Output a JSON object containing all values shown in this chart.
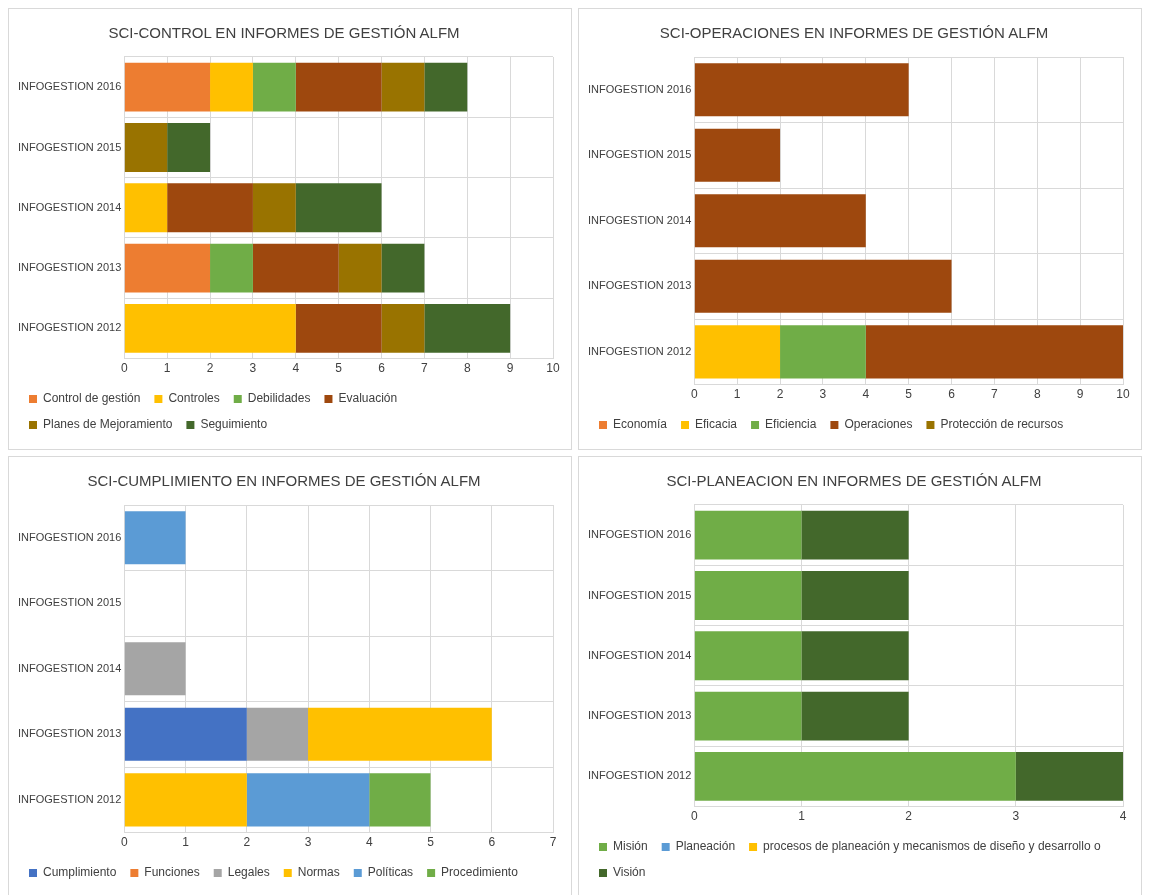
{
  "chart_data": [
    {
      "type": "bar",
      "orientation": "horizontal",
      "stacked": true,
      "title": "SCI-CONTROL EN INFORMES DE GESTIÓN ALFM",
      "categories": [
        "INFOGESTION 2016",
        "INFOGESTION 2015",
        "INFOGESTION 2014",
        "INFOGESTION 2013",
        "INFOGESTION 2012"
      ],
      "xlim": [
        0,
        10
      ],
      "xticks": [
        0,
        1,
        2,
        3,
        4,
        5,
        6,
        7,
        8,
        9,
        10
      ],
      "grid": true,
      "legend": "bottom",
      "series": [
        {
          "name": "Control de gestión",
          "color": "#ed7d31",
          "values": [
            2,
            null,
            null,
            2,
            null
          ]
        },
        {
          "name": "Controles",
          "color": "#ffc000",
          "values": [
            1,
            null,
            1,
            null,
            4
          ]
        },
        {
          "name": "Debilidades",
          "color": "#70ad47",
          "values": [
            1,
            null,
            null,
            1,
            null
          ]
        },
        {
          "name": "Evaluación",
          "color": "#9e480e",
          "values": [
            2,
            null,
            2,
            2,
            2
          ]
        },
        {
          "name": "Planes de Mejoramiento",
          "color": "#997300",
          "values": [
            1,
            1,
            1,
            1,
            1
          ]
        },
        {
          "name": "Seguimiento",
          "color": "#43682b",
          "values": [
            1,
            1,
            2,
            1,
            2
          ]
        }
      ]
    },
    {
      "type": "bar",
      "orientation": "horizontal",
      "stacked": true,
      "title": "SCI-OPERACIONES EN INFORMES DE GESTIÓN ALFM",
      "categories": [
        "INFOGESTION 2016",
        "INFOGESTION 2015",
        "INFOGESTION 2014",
        "INFOGESTION 2013",
        "INFOGESTION 2012"
      ],
      "xlim": [
        0,
        10
      ],
      "xticks": [
        0,
        1,
        2,
        3,
        4,
        5,
        6,
        7,
        8,
        9,
        10
      ],
      "grid": true,
      "legend": "bottom",
      "series": [
        {
          "name": "Economía",
          "color": "#ed7d31",
          "values": [
            null,
            null,
            null,
            null,
            null
          ]
        },
        {
          "name": "Eficacia",
          "color": "#ffc000",
          "values": [
            null,
            null,
            null,
            null,
            2
          ]
        },
        {
          "name": "Eficiencia",
          "color": "#70ad47",
          "values": [
            null,
            null,
            null,
            null,
            2
          ]
        },
        {
          "name": "Operaciones",
          "color": "#9e480e",
          "values": [
            5,
            2,
            4,
            6,
            6
          ]
        },
        {
          "name": "Protección de recursos",
          "color": "#997300",
          "values": [
            null,
            null,
            null,
            null,
            null
          ]
        }
      ]
    },
    {
      "type": "bar",
      "orientation": "horizontal",
      "stacked": true,
      "title": "SCI-CUMPLIMIENTO EN INFORMES DE GESTIÓN ALFM",
      "categories": [
        "INFOGESTION 2016",
        "INFOGESTION 2015",
        "INFOGESTION 2014",
        "INFOGESTION 2013",
        "INFOGESTION 2012"
      ],
      "xlim": [
        0,
        7
      ],
      "xticks": [
        0,
        1,
        2,
        3,
        4,
        5,
        6,
        7
      ],
      "grid": true,
      "legend": "bottom",
      "series": [
        {
          "name": "Cumplimiento",
          "color": "#4472c4",
          "values": [
            null,
            null,
            null,
            2,
            null
          ]
        },
        {
          "name": "Funciones",
          "color": "#ed7d31",
          "values": [
            null,
            null,
            null,
            null,
            null
          ]
        },
        {
          "name": "Legales",
          "color": "#a5a5a5",
          "values": [
            null,
            null,
            1,
            1,
            null
          ]
        },
        {
          "name": "Normas",
          "color": "#ffc000",
          "values": [
            null,
            null,
            null,
            3,
            2
          ]
        },
        {
          "name": "Políticas",
          "color": "#5b9bd5",
          "values": [
            1,
            null,
            null,
            null,
            2
          ]
        },
        {
          "name": "Procedimiento",
          "color": "#70ad47",
          "values": [
            null,
            null,
            null,
            null,
            1
          ]
        }
      ]
    },
    {
      "type": "bar",
      "orientation": "horizontal",
      "stacked": true,
      "title": "SCI-PLANEACION EN INFORMES DE GESTIÓN ALFM",
      "categories": [
        "INFOGESTION 2016",
        "INFOGESTION 2015",
        "INFOGESTION 2014",
        "INFOGESTION 2013",
        "INFOGESTION 2012"
      ],
      "xlim": [
        0,
        4
      ],
      "xticks": [
        0,
        1,
        2,
        3,
        4
      ],
      "grid": true,
      "legend": "bottom",
      "series": [
        {
          "name": "Misión",
          "color": "#70ad47",
          "values": [
            1,
            1,
            1,
            1,
            3
          ]
        },
        {
          "name": "Planeación",
          "color": "#5b9bd5",
          "values": [
            null,
            null,
            null,
            null,
            null
          ]
        },
        {
          "name": "procesos de planeación y mecanismos de diseño y desarrollo o",
          "color": "#ffc000",
          "values": [
            null,
            null,
            null,
            null,
            null
          ]
        },
        {
          "name": "Visión",
          "color": "#43682b",
          "values": [
            1,
            1,
            1,
            1,
            1
          ]
        }
      ]
    }
  ]
}
